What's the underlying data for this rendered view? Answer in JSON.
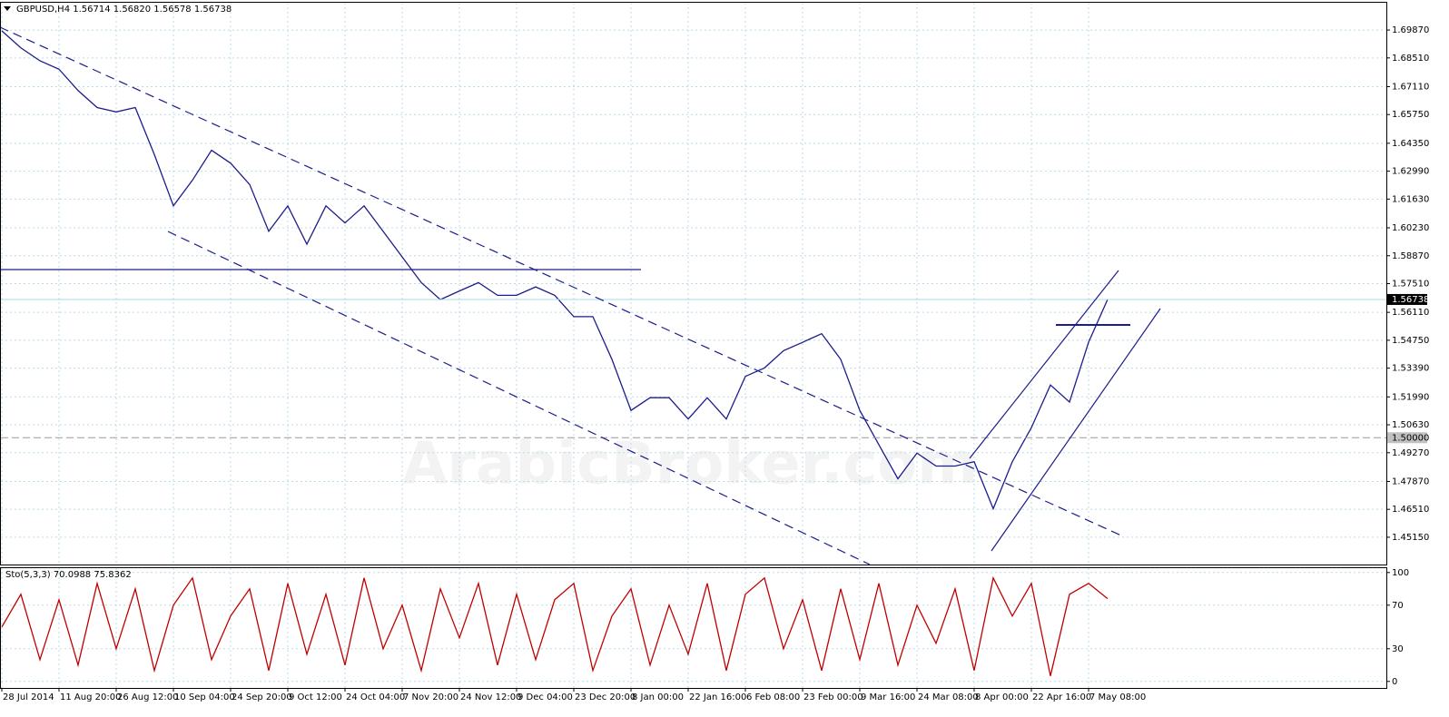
{
  "chart_data": [
    {
      "type": "line",
      "title": "GBPUSD,H4  1.56714 1.56820 1.56578 1.56738",
      "watermark": "ArabicBroker.com",
      "categories": [
        "28 Jul 2014",
        null,
        null,
        "11 Aug 20:00",
        null,
        null,
        "26 Aug 12:00",
        null,
        null,
        "10 Sep 04:00",
        null,
        null,
        "24 Sep 20:00",
        null,
        null,
        "9 Oct 12:00",
        null,
        null,
        "24 Oct 04:00",
        null,
        null,
        "7 Nov 20:00",
        null,
        null,
        "24 Nov 12:00",
        null,
        null,
        "9 Dec 04:00",
        null,
        null,
        "23 Dec 20:00",
        null,
        null,
        "8 Jan 00:00",
        null,
        null,
        "22 Jan 16:00",
        null,
        null,
        "6 Feb 08:00",
        null,
        null,
        "23 Feb 00:00",
        null,
        null,
        "9 Mar 16:00",
        null,
        null,
        "24 Mar 08:00",
        null,
        null,
        "8 Apr 00:00",
        null,
        null,
        "22 Apr 16:00",
        null,
        null,
        "7 May 08:00",
        null
      ],
      "values": [
        1.6983,
        1.69,
        1.6837,
        1.6796,
        1.6692,
        1.6609,
        1.6588,
        1.6609,
        1.638,
        1.613,
        1.6255,
        1.6401,
        1.6338,
        1.6234,
        1.6006,
        1.613,
        1.5943,
        1.613,
        1.6047,
        1.613,
        1.6006,
        1.5881,
        1.5756,
        1.5673,
        1.5715,
        1.5756,
        1.5694,
        1.5694,
        1.5735,
        1.5694,
        1.559,
        1.559,
        1.5382,
        1.5133,
        1.5195,
        1.5195,
        1.5091,
        1.5195,
        1.5091,
        1.5299,
        1.534,
        1.5424,
        1.5465,
        1.5507,
        1.5382,
        1.5133,
        1.4966,
        1.48,
        1.4925,
        1.4862,
        1.4862,
        1.4883,
        1.4654,
        1.4883,
        1.5049,
        1.5257,
        1.5174,
        1.5465,
        1.5674
      ],
      "color": "#1c1c8c",
      "ylim": [
        1.4382,
        1.712
      ],
      "yticks": [
        {
          "value": 1.6987,
          "label": "1.69870"
        },
        {
          "value": 1.6851,
          "label": "1.68510"
        },
        {
          "value": 1.6711,
          "label": "1.67110"
        },
        {
          "value": 1.6575,
          "label": "1.65750"
        },
        {
          "value": 1.6435,
          "label": "1.64350"
        },
        {
          "value": 1.6299,
          "label": "1.62990"
        },
        {
          "value": 1.6163,
          "label": "1.61630"
        },
        {
          "value": 1.6023,
          "label": "1.60230"
        },
        {
          "value": 1.5887,
          "label": "1.58870"
        },
        {
          "value": 1.5751,
          "label": "1.57510"
        },
        {
          "value": 1.5611,
          "label": "1.56110"
        },
        {
          "value": 1.5475,
          "label": "1.54750"
        },
        {
          "value": 1.5339,
          "label": "1.53390"
        },
        {
          "value": 1.5199,
          "label": "1.51990"
        },
        {
          "value": 1.5063,
          "label": "1.50630"
        },
        {
          "value": 1.4927,
          "label": "1.49270"
        },
        {
          "value": 1.4787,
          "label": "1.47870"
        },
        {
          "value": 1.4651,
          "label": "1.46510"
        },
        {
          "value": 1.4515,
          "label": "1.45150"
        }
      ],
      "last_price": 1.56738,
      "level": {
        "value": 1.5,
        "label": "1.50000"
      },
      "grid": true
    },
    {
      "type": "line",
      "title": "Sto(5,3,3) 70.0988 75.8362",
      "values": [
        50,
        80,
        20,
        75,
        15,
        90,
        30,
        85,
        10,
        70,
        95,
        20,
        60,
        85,
        10,
        90,
        25,
        80,
        15,
        95,
        30,
        70,
        10,
        85,
        40,
        90,
        15,
        80,
        20,
        75,
        90,
        10,
        60,
        85,
        15,
        70,
        25,
        90,
        10,
        80,
        95,
        30,
        75,
        10,
        85,
        20,
        90,
        15,
        70,
        35,
        85,
        10,
        95,
        60,
        90,
        5,
        80,
        90,
        76
      ],
      "color": "#c00000",
      "ylim": [
        -6,
        104
      ],
      "yticks": [
        0,
        30,
        70,
        100
      ],
      "grid": true
    }
  ]
}
